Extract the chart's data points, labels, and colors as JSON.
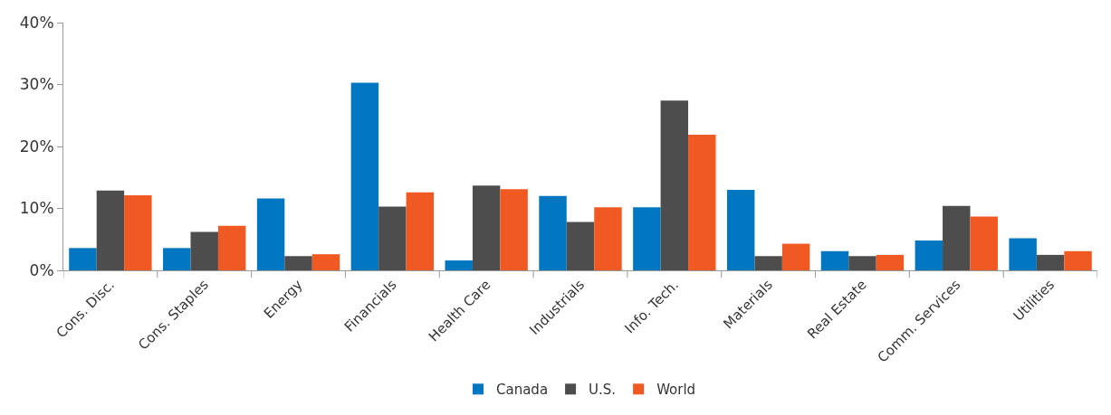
{
  "chart_data": {
    "type": "bar",
    "categories": [
      "Cons. Disc.",
      "Cons. Staples",
      "Energy",
      "Financials",
      "Health Care",
      "Industrials",
      "Info. Tech.",
      "Materials",
      "Real Estate",
      "Comm. Services",
      "Utilities"
    ],
    "series": [
      {
        "name": "Canada",
        "color": "#0077c0",
        "values": [
          3.6,
          3.6,
          11.6,
          30.3,
          1.6,
          12.0,
          10.2,
          13.0,
          3.1,
          4.8,
          5.2
        ]
      },
      {
        "name": "U.S.",
        "color": "#4d4d4d",
        "values": [
          12.9,
          6.2,
          2.3,
          10.3,
          13.7,
          7.8,
          27.4,
          2.3,
          2.3,
          10.4,
          2.5
        ]
      },
      {
        "name": "World",
        "color": "#f05a22",
        "values": [
          12.1,
          7.2,
          2.6,
          12.6,
          13.1,
          10.2,
          21.9,
          4.3,
          2.5,
          8.7,
          3.1
        ]
      }
    ],
    "ylim": [
      0,
      40
    ],
    "yticks": [
      {
        "value": 0,
        "label": "0%"
      },
      {
        "value": 10,
        "label": "10%"
      },
      {
        "value": 20,
        "label": "20%"
      },
      {
        "value": 30,
        "label": "30%"
      },
      {
        "value": 40,
        "label": "40%"
      }
    ],
    "legend": "bottom"
  }
}
